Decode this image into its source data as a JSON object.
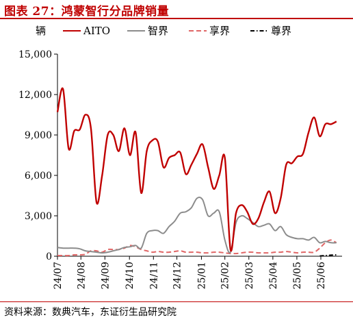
{
  "title": "图表 27：鸿蒙智行分品牌销量",
  "source": "资料来源：数典汽车，东证衍生品研究院",
  "colors": {
    "title": "#c00000",
    "AITO": "#c00000",
    "智界": "#8c8c8c",
    "享界": "#e06666",
    "尊界": "#000000"
  },
  "chart_data": {
    "type": "line",
    "ylabel": "辆",
    "ylim": [
      0,
      15000
    ],
    "yticks": [
      0,
      3000,
      6000,
      9000,
      12000,
      15000
    ],
    "ytick_labels": [
      "0",
      "3,000",
      "6,000",
      "9,000",
      "12,000",
      "15,000"
    ],
    "xlim": [
      0,
      51
    ],
    "xticks": [
      0,
      4.2,
      8.5,
      12.9,
      17.2,
      21.4,
      25.8,
      30.0,
      34.3,
      38.6,
      42.9,
      47.2
    ],
    "xtick_labels": [
      "24/07",
      "24/08",
      "24/09",
      "24/10",
      "24/11",
      "24/12",
      "25/01",
      "25/02",
      "25/03",
      "25/04",
      "25/05",
      "25/06"
    ],
    "grid": false,
    "legend_position": "top",
    "series": [
      {
        "name": "AITO",
        "style": "solid",
        "x": [
          0,
          1,
          2,
          3,
          4,
          5,
          6,
          7,
          8,
          9,
          10,
          11,
          12,
          13,
          14,
          15,
          16,
          17,
          18,
          19,
          20,
          21,
          22,
          23,
          24,
          25,
          26,
          27,
          28,
          29,
          30,
          31,
          32,
          33,
          34,
          35,
          36,
          37,
          38,
          39,
          40,
          41,
          42,
          43,
          44,
          45,
          46,
          47,
          48,
          49,
          50
        ],
        "y": [
          10700,
          12400,
          8000,
          9300,
          9400,
          10500,
          9500,
          4000,
          6000,
          9000,
          9000,
          7800,
          9500,
          7500,
          9200,
          4700,
          7800,
          8600,
          8500,
          6600,
          7300,
          7500,
          7700,
          6100,
          6800,
          7600,
          8300,
          6600,
          5000,
          6000,
          7300,
          500,
          3200,
          3800,
          3300,
          2400,
          2800,
          4000,
          4800,
          3200,
          4300,
          6800,
          6900,
          7400,
          7600,
          9200,
          10300,
          8900,
          9800,
          9800,
          10000
        ]
      },
      {
        "name": "智界",
        "style": "solid",
        "x": [
          0,
          1,
          2,
          3,
          4,
          5,
          6,
          7,
          8,
          9,
          10,
          11,
          12,
          13,
          14,
          15,
          16,
          17,
          18,
          19,
          20,
          21,
          22,
          23,
          24,
          25,
          26,
          27,
          28,
          29,
          30,
          31,
          32,
          33,
          34,
          35,
          36,
          37,
          38,
          39,
          40,
          41,
          42,
          43,
          44,
          45,
          46,
          47,
          48,
          49,
          50
        ],
        "y": [
          650,
          600,
          600,
          600,
          550,
          400,
          350,
          300,
          250,
          300,
          400,
          500,
          650,
          700,
          800,
          600,
          1700,
          1900,
          1900,
          1700,
          2200,
          2600,
          3200,
          3300,
          3600,
          4300,
          4200,
          3000,
          3200,
          3300,
          1200,
          300,
          2500,
          3000,
          2800,
          2500,
          2200,
          2300,
          2400,
          1900,
          2200,
          1600,
          1400,
          1300,
          1300,
          1200,
          1400,
          1000,
          1100,
          1000,
          1000
        ]
      },
      {
        "name": "享界",
        "style": "dashed",
        "x": [
          0,
          1,
          2,
          3,
          4,
          5,
          6,
          7,
          8,
          9,
          10,
          11,
          12,
          13,
          14,
          15,
          16,
          17,
          18,
          19,
          20,
          21,
          22,
          23,
          24,
          25,
          26,
          27,
          28,
          29,
          30,
          31,
          32,
          33,
          34,
          35,
          36,
          37,
          38,
          39,
          40,
          41,
          42,
          43,
          44,
          45,
          46,
          47,
          48,
          49,
          50
        ],
        "y": [
          50,
          50,
          50,
          100,
          100,
          150,
          400,
          400,
          300,
          500,
          500,
          500,
          600,
          800,
          700,
          500,
          400,
          300,
          350,
          300,
          300,
          350,
          400,
          300,
          300,
          300,
          250,
          250,
          300,
          300,
          250,
          200,
          200,
          250,
          300,
          300,
          250,
          250,
          250,
          300,
          300,
          350,
          300,
          250,
          300,
          300,
          300,
          600,
          1000,
          1200,
          1000
        ]
      },
      {
        "name": "尊界",
        "style": "dashdot",
        "x": [
          47,
          48,
          49,
          50
        ],
        "y": [
          20,
          50,
          80,
          100
        ]
      }
    ]
  }
}
